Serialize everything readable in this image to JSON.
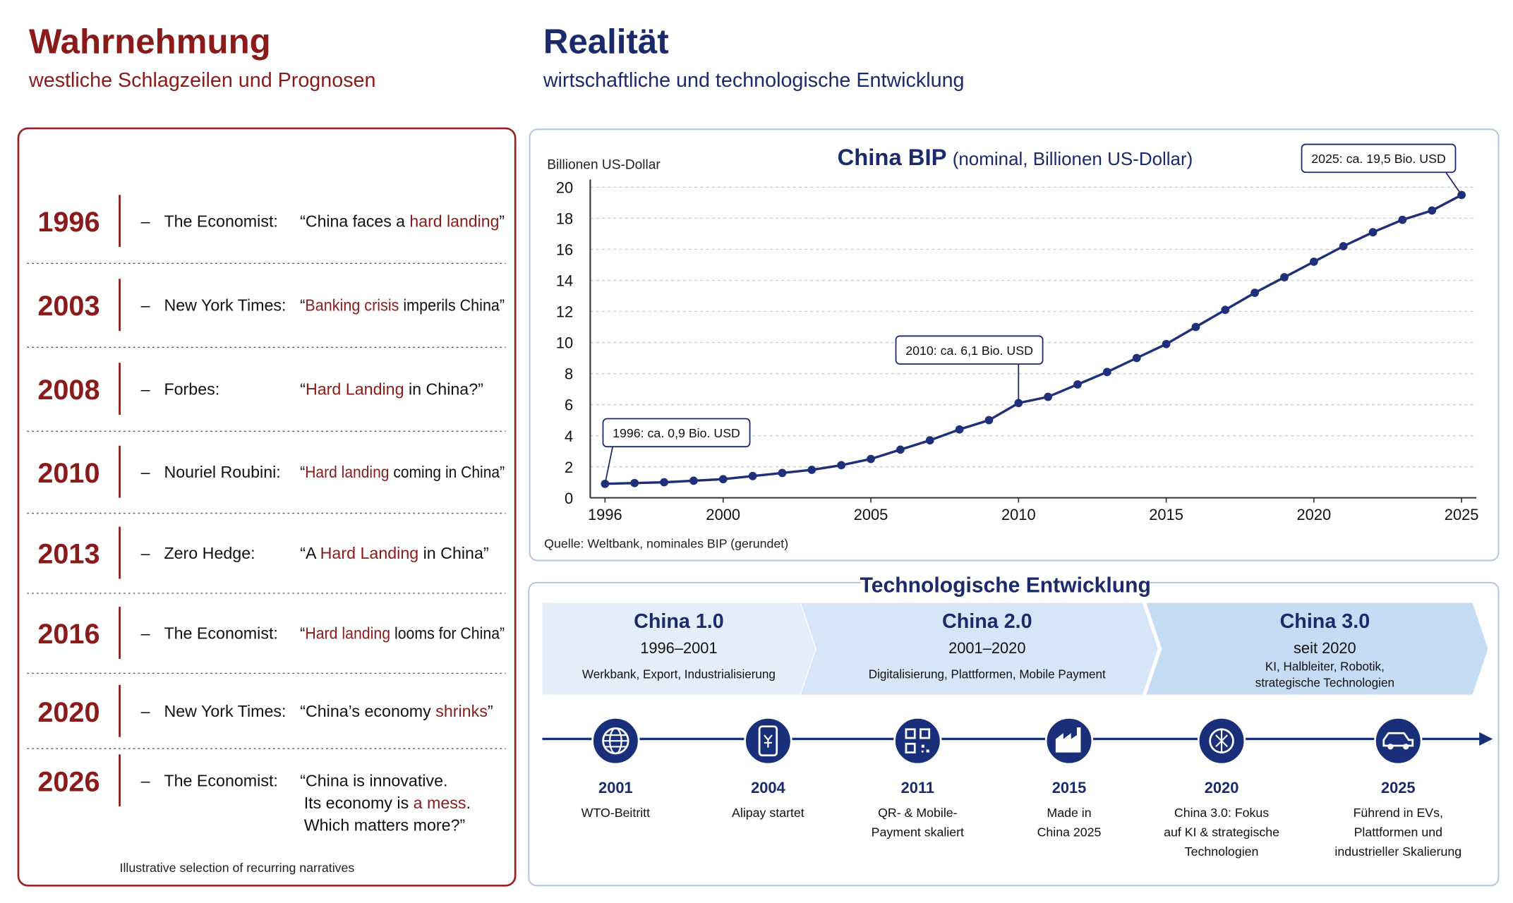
{
  "left": {
    "title": "Wahrnehmung",
    "subtitle": "westliche Schlagzeilen und Prognosen",
    "dash": "–",
    "headlines": [
      {
        "year": "1996",
        "source": "The Economist:",
        "quote": [
          [
            {
              "text": "“China faces a ",
              "highlight": false
            },
            {
              "text": "hard landing",
              "highlight": true
            },
            {
              "text": "”",
              "highlight": false
            }
          ]
        ]
      },
      {
        "year": "2003",
        "source": "New York Times:",
        "quote": [
          [
            {
              "text": "“",
              "highlight": false
            },
            {
              "text": "Banking crisis",
              "highlight": true
            },
            {
              "text": " imperils China”",
              "highlight": false
            }
          ]
        ]
      },
      {
        "year": "2008",
        "source": "Forbes:",
        "quote": [
          [
            {
              "text": "“",
              "highlight": false
            },
            {
              "text": "Hard Landing",
              "highlight": true
            },
            {
              "text": " in China?”",
              "highlight": false
            }
          ]
        ]
      },
      {
        "year": "2010",
        "source": "Nouriel Roubini:",
        "quote": [
          [
            {
              "text": "“",
              "highlight": false
            },
            {
              "text": "Hard landing",
              "highlight": true
            },
            {
              "text": " coming in China”",
              "highlight": false
            }
          ]
        ]
      },
      {
        "year": "2013",
        "source": "Zero Hedge:",
        "quote": [
          [
            {
              "text": "“A ",
              "highlight": false
            },
            {
              "text": "Hard Landing",
              "highlight": true
            },
            {
              "text": " in China”",
              "highlight": false
            }
          ]
        ]
      },
      {
        "year": "2016",
        "source": "The Economist:",
        "quote": [
          [
            {
              "text": "“",
              "highlight": false
            },
            {
              "text": "Hard landing",
              "highlight": true
            },
            {
              "text": " looms for China”",
              "highlight": false
            }
          ]
        ]
      },
      {
        "year": "2020",
        "source": "New York Times:",
        "quote": [
          [
            {
              "text": "“China’s economy ",
              "highlight": false
            },
            {
              "text": "shrinks",
              "highlight": true
            },
            {
              "text": "”",
              "highlight": false
            }
          ]
        ]
      },
      {
        "year": "2026",
        "source": "The Economist:",
        "quote": [
          [
            {
              "text": "“China is innovative.",
              "highlight": false
            }
          ],
          [
            {
              "text": "Its economy is ",
              "highlight": false
            },
            {
              "text": "a mess",
              "highlight": true
            },
            {
              "text": ".",
              "highlight": false
            }
          ],
          [
            {
              "text": "Which matters more?”",
              "highlight": false
            }
          ]
        ]
      }
    ],
    "footnote": "Illustrative selection of recurring narratives"
  },
  "right": {
    "title": "Realität",
    "subtitle": "wirtschaftliche und technologische Entwicklung"
  },
  "chart_data": {
    "type": "line",
    "title": "China BIP",
    "subtitle": "(nominal, Billionen US-Dollar)",
    "y_label": "Billionen US-Dollar",
    "source": "Quelle: Weltbank, nominales BIP (gerundet)",
    "x": [
      1996,
      1997,
      1998,
      1999,
      2000,
      2001,
      2002,
      2003,
      2004,
      2005,
      2006,
      2007,
      2008,
      2009,
      2010,
      2011,
      2012,
      2013,
      2014,
      2015,
      2016,
      2017,
      2018,
      2019,
      2020,
      2021,
      2022,
      2023,
      2024,
      2025
    ],
    "values": [
      0.9,
      0.95,
      1.0,
      1.1,
      1.2,
      1.4,
      1.6,
      1.8,
      2.1,
      2.5,
      3.1,
      3.7,
      4.4,
      5.0,
      6.1,
      6.5,
      7.3,
      8.1,
      9.0,
      9.9,
      11.0,
      12.1,
      13.2,
      14.2,
      15.2,
      16.2,
      17.1,
      17.9,
      18.5,
      19.5
    ],
    "color": "#1f2f7a",
    "xlim": [
      1995.5,
      2025.5
    ],
    "xticks": [
      1996,
      2000,
      2005,
      2010,
      2015,
      2020,
      2025
    ],
    "ylim": [
      0,
      20
    ],
    "yticks": [
      0,
      2,
      4,
      6,
      8,
      10,
      12,
      14,
      16,
      18,
      20
    ],
    "grid": true,
    "annotations": [
      {
        "text": "1996: ca. 0,9 Bio. USD",
        "x": 1996
      },
      {
        "text": "2010: ca. 6,1 Bio. USD",
        "x": 2010
      },
      {
        "text": "2025: ca. 19,5 Bio. USD",
        "x": 2025
      }
    ]
  },
  "tech": {
    "title": "Technologische Entwicklung",
    "phases": [
      {
        "name": "China 1.0",
        "period": "1996–2001",
        "desc": [
          "Werkbank, Export, Industrialisierung"
        ]
      },
      {
        "name": "China 2.0",
        "period": "2001–2020",
        "desc": [
          "Digitalisierung, Plattformen, Mobile Payment"
        ]
      },
      {
        "name": "China 3.0",
        "period": "seit 2020",
        "desc": [
          "KI, Halbleiter, Robotik,",
          "strategische Technologien"
        ]
      }
    ],
    "events": [
      {
        "year": "2001",
        "text": [
          "WTO-Beitritt"
        ]
      },
      {
        "year": "2004",
        "text": [
          "Alipay startet"
        ]
      },
      {
        "year": "2011",
        "text": [
          "QR- & Mobile-",
          "Payment skaliert"
        ]
      },
      {
        "year": "2015",
        "text": [
          "Made in",
          "China 2025"
        ]
      },
      {
        "year": "2020",
        "text": [
          "China 3.0: Fokus",
          "auf KI & strategische",
          "Technologien"
        ]
      },
      {
        "year": "2025",
        "text": [
          "Führend in EVs,",
          "Plattformen und",
          "industrieller Skalierung"
        ]
      }
    ]
  }
}
